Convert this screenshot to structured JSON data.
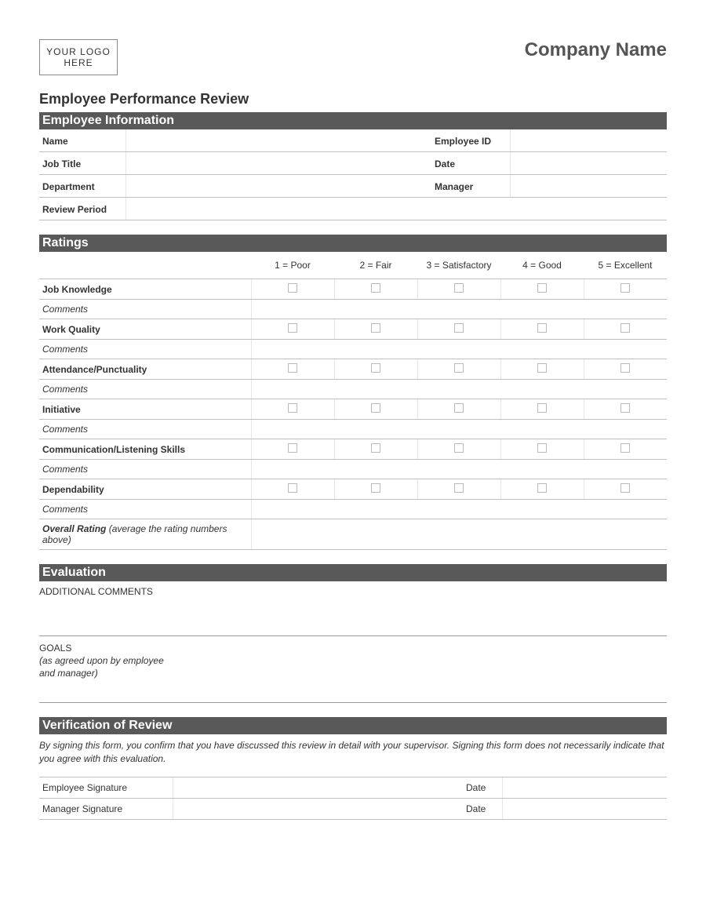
{
  "header": {
    "logo_line1": "YOUR LOGO",
    "logo_line2": "HERE",
    "company": "Company Name"
  },
  "title": "Employee Performance Review",
  "sections": {
    "employee_info": {
      "heading": "Employee Information",
      "fields": {
        "name": "Name",
        "employee_id": "Employee ID",
        "job_title": "Job Title",
        "date": "Date",
        "department": "Department",
        "manager": "Manager",
        "review_period": "Review Period"
      }
    },
    "ratings": {
      "heading": "Ratings",
      "scale": {
        "s1": "1 = Poor",
        "s2": "2 = Fair",
        "s3": "3 = Satisfactory",
        "s4": "4 = Good",
        "s5": "5 = Excellent"
      },
      "categories": {
        "c0": "Job Knowledge",
        "c1": "Work Quality",
        "c2": "Attendance/Punctuality",
        "c3": "Initiative",
        "c4": "Communication/Listening Skills",
        "c5": "Dependability"
      },
      "comments_label": "Comments",
      "overall_label": "Overall Rating",
      "overall_note": "(average the rating numbers above)"
    },
    "evaluation": {
      "heading": "Evaluation",
      "additional_comments": "ADDITIONAL COMMENTS",
      "goals": "GOALS",
      "goals_note_l1": "(as agreed upon by employee",
      "goals_note_l2": "and manager)"
    },
    "verification": {
      "heading": "Verification of Review",
      "text": "By signing this form, you confirm that you have discussed this review in detail with your supervisor. Signing this form does not necessarily indicate that you agree with this evaluation.",
      "employee_sig": "Employee Signature",
      "manager_sig": "Manager Signature",
      "date": "Date"
    }
  },
  "colors": {
    "section_bar_bg": "#595959",
    "section_bar_text": "#ffffff",
    "border": "#bfbfbf",
    "border_light": "#e6e6e6",
    "text": "#333333",
    "company_text": "#555555"
  }
}
